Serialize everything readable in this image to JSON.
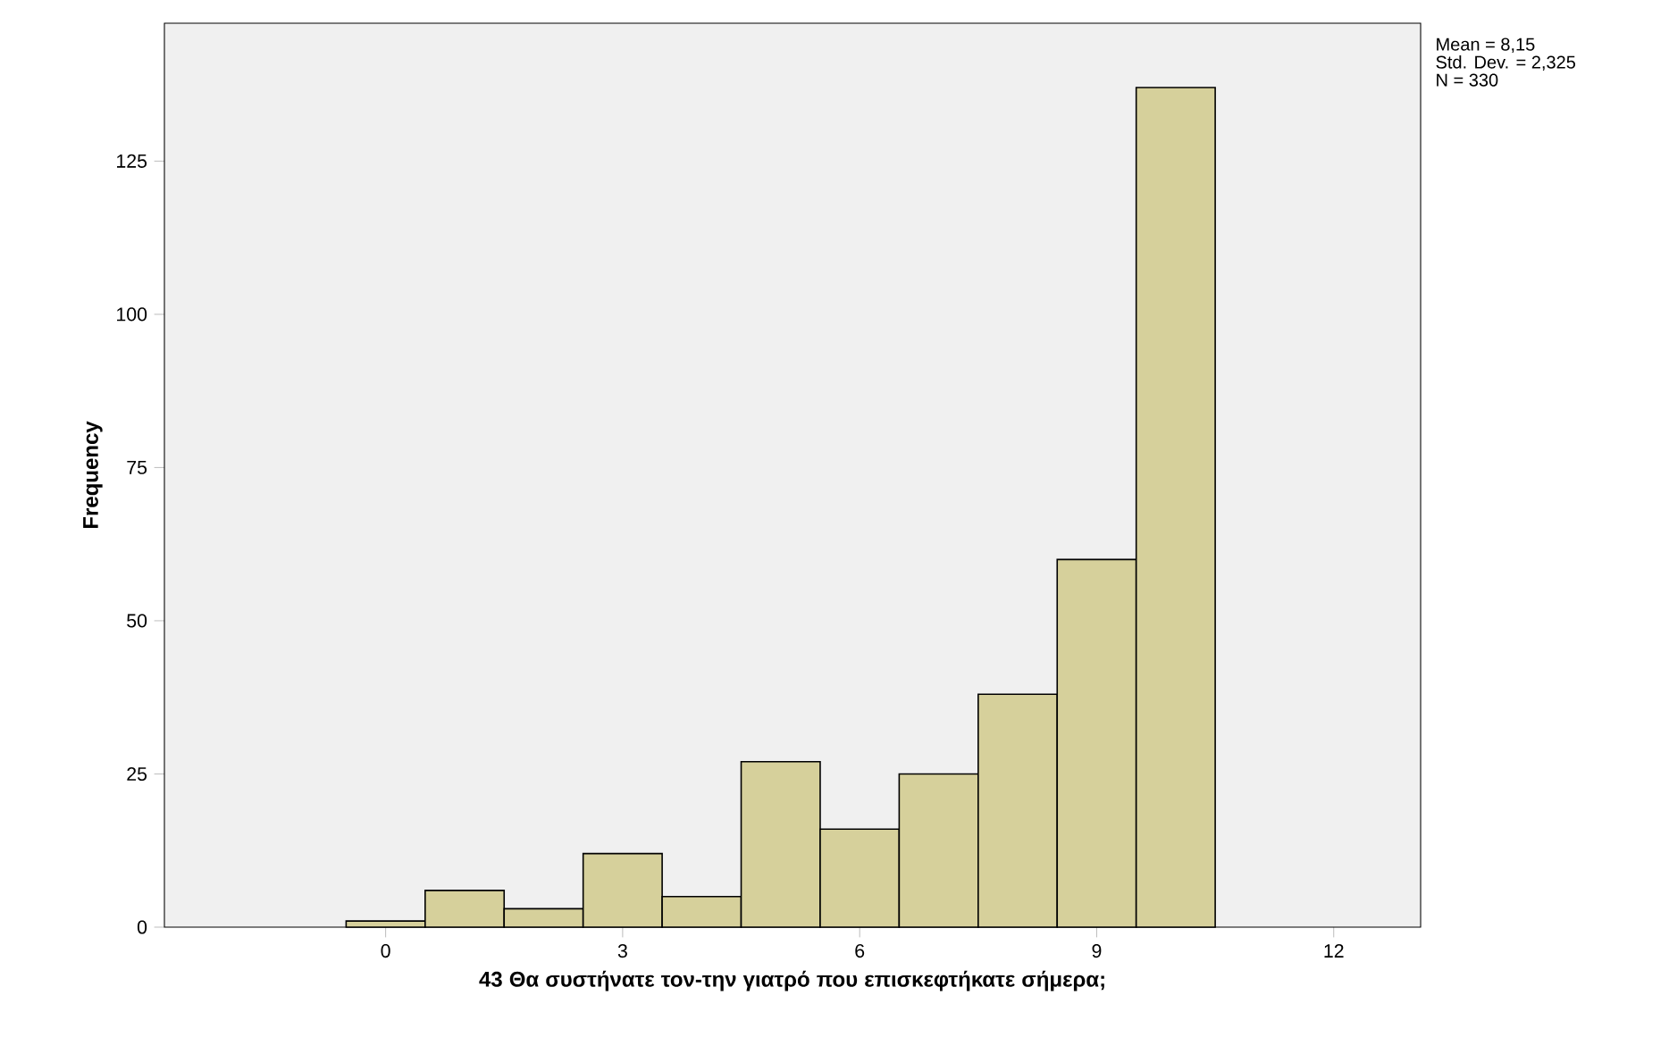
{
  "chart_data": {
    "type": "histogram",
    "xlabel": "43 Θα συστήνατε τον-την γιατρό που επισκεφτήκατε σήμερα;",
    "ylabel": "Frequency",
    "bins": [
      -0.5,
      0.5,
      1.5,
      2.5,
      3.5,
      4.5,
      5.5,
      6.5,
      7.5,
      8.5,
      9.5,
      10.5
    ],
    "values": [
      1,
      6,
      3,
      12,
      5,
      27,
      16,
      25,
      38,
      60,
      137
    ],
    "color": "#d6d09b",
    "xlim": [
      -2.8,
      13.1
    ],
    "ylim": [
      0,
      147.5
    ],
    "xticks": [
      0,
      3,
      6,
      9,
      12
    ],
    "yticks": [
      0,
      25,
      50,
      75,
      100,
      125
    ],
    "annotations": [
      "Mean = 8,15",
      "Std. Dev. = 2,325",
      "N = 330"
    ]
  }
}
